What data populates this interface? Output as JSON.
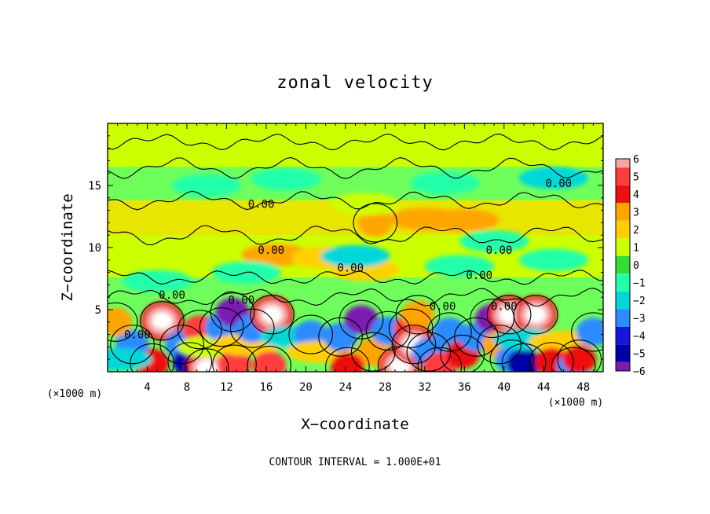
{
  "chart_data": {
    "type": "heatmap",
    "title": "zonal velocity",
    "xlabel": "X−coordinate",
    "ylabel": "Z−coordinate",
    "x_unit_left": "(×1000 m)",
    "x_unit_right": "(×1000 m)",
    "footer": "CONTOUR INTERVAL = 1.000E+01",
    "xlim": [
      0,
      50
    ],
    "ylim": [
      0,
      20
    ],
    "x_ticks": [
      4,
      8,
      12,
      16,
      20,
      24,
      28,
      32,
      36,
      40,
      44,
      48
    ],
    "x_tick_labels": [
      "4",
      "8",
      "12",
      "16",
      "20",
      "24",
      "28",
      "32",
      "36",
      "40",
      "44",
      "48"
    ],
    "y_ticks": [
      5,
      10,
      15
    ],
    "y_tick_labels": [
      "5",
      "10",
      "15"
    ],
    "colorbar": {
      "levels": [
        6,
        5,
        4,
        3,
        2,
        1,
        0,
        -1,
        -2,
        -3,
        -4,
        -5,
        -6
      ],
      "labels": [
        "6",
        "5",
        "4",
        "3",
        "2",
        "1",
        "0",
        "−1",
        "−2",
        "−3",
        "−4",
        "−5",
        "−6"
      ],
      "colors": [
        "#f4a6a6",
        "#ff3c3c",
        "#ee1010",
        "#ffa500",
        "#ffd000",
        "#ccff00",
        "#33dd33",
        "#22ffaa",
        "#00d8d8",
        "#2a8cff",
        "#1515dd",
        "#0000aa",
        "#7a1bb2"
      ]
    },
    "contour_label": "0.00",
    "contour_label_positions": [
      {
        "x": 3.0,
        "z": 3.0
      },
      {
        "x": 6.5,
        "z": 6.2
      },
      {
        "x": 13.5,
        "z": 5.8
      },
      {
        "x": 15.5,
        "z": 13.5
      },
      {
        "x": 16.5,
        "z": 9.8
      },
      {
        "x": 24.5,
        "z": 8.4
      },
      {
        "x": 33.8,
        "z": 5.3
      },
      {
        "x": 37.5,
        "z": 7.8
      },
      {
        "x": 39.5,
        "z": 9.8
      },
      {
        "x": 40.0,
        "z": 5.3
      },
      {
        "x": 45.5,
        "z": 15.2
      }
    ],
    "features": [
      {
        "x": 5.5,
        "z": 4.1,
        "value": 7
      },
      {
        "x": 4.5,
        "z": 0.7,
        "value": 4
      },
      {
        "x": 2.5,
        "z": 2.2,
        "value": -3
      },
      {
        "x": 7.5,
        "z": 2.2,
        "value": -3
      },
      {
        "x": 9.3,
        "z": 3.4,
        "value": 5
      },
      {
        "x": 8.3,
        "z": 0.8,
        "value": -5
      },
      {
        "x": 10.0,
        "z": 0.3,
        "value": 7
      },
      {
        "x": 10.5,
        "z": 2.0,
        "value": 1
      },
      {
        "x": 11.5,
        "z": 3.6,
        "value": -3
      },
      {
        "x": 12.6,
        "z": 4.8,
        "value": -6
      },
      {
        "x": 12.8,
        "z": 0.6,
        "value": 5
      },
      {
        "x": 14.0,
        "z": 2.2,
        "value": 2
      },
      {
        "x": 14.6,
        "z": 3.5,
        "value": -3
      },
      {
        "x": 16.6,
        "z": 4.6,
        "value": 7
      },
      {
        "x": 16.3,
        "z": 0.5,
        "value": 5
      },
      {
        "x": 18.8,
        "z": 2.8,
        "value": -2.5
      },
      {
        "x": 20.5,
        "z": 3.0,
        "value": -3
      },
      {
        "x": 21.5,
        "z": 1.6,
        "value": 2
      },
      {
        "x": 23.5,
        "z": 2.8,
        "value": -3
      },
      {
        "x": 25.6,
        "z": 4.2,
        "value": -6
      },
      {
        "x": 26.8,
        "z": 1.6,
        "value": 3
      },
      {
        "x": 24.2,
        "z": 0.4,
        "value": 4
      },
      {
        "x": 28.3,
        "z": 3.3,
        "value": -3
      },
      {
        "x": 29.5,
        "z": 0.5,
        "value": 7
      },
      {
        "x": 30.6,
        "z": 3.5,
        "value": 5
      },
      {
        "x": 31.3,
        "z": 4.6,
        "value": 3
      },
      {
        "x": 30.9,
        "z": 2.2,
        "value": 7
      },
      {
        "x": 32.4,
        "z": 1.6,
        "value": -3
      },
      {
        "x": 33.5,
        "z": 0.4,
        "value": 5
      },
      {
        "x": 34.5,
        "z": 3.2,
        "value": -3
      },
      {
        "x": 35.8,
        "z": 1.4,
        "value": 4
      },
      {
        "x": 37.2,
        "z": 2.8,
        "value": -3
      },
      {
        "x": 38.8,
        "z": 4.3,
        "value": -6
      },
      {
        "x": 39.5,
        "z": 2.2,
        "value": 3
      },
      {
        "x": 40.5,
        "z": 4.6,
        "value": 7
      },
      {
        "x": 40.8,
        "z": 1.0,
        "value": -3
      },
      {
        "x": 42.0,
        "z": 0.7,
        "value": -5.5
      },
      {
        "x": 43.2,
        "z": 4.6,
        "value": 7
      },
      {
        "x": 42.3,
        "z": 2.6,
        "value": -2
      },
      {
        "x": 46.0,
        "z": 2.4,
        "value": 2
      },
      {
        "x": 44.8,
        "z": 0.8,
        "value": 4
      },
      {
        "x": 47.0,
        "z": 0.4,
        "value": -3.5
      },
      {
        "x": 47.6,
        "z": 1.0,
        "value": 4
      },
      {
        "x": 49.0,
        "z": 3.2,
        "value": -3
      },
      {
        "x": 0.8,
        "z": 4.0,
        "value": 3
      },
      {
        "x": 1.0,
        "z": 1.0,
        "value": -2
      },
      {
        "x": 27.0,
        "z": 12.0,
        "value": 3
      },
      {
        "x": 32.0,
        "z": 12.3,
        "value": 2.5
      },
      {
        "x": 36.0,
        "z": 12.2,
        "value": 2.5
      },
      {
        "x": 17.0,
        "z": 9.4,
        "value": 2.5
      },
      {
        "x": 22.0,
        "z": 9.2,
        "value": 1.5
      },
      {
        "x": 26.0,
        "z": 8.2,
        "value": 1.5
      },
      {
        "x": 25.0,
        "z": 9.3,
        "value": -2
      },
      {
        "x": 35.5,
        "z": 8.5,
        "value": -1.5
      },
      {
        "x": 39.0,
        "z": 10.5,
        "value": -1.5
      },
      {
        "x": 10.0,
        "z": 15.0,
        "value": -1.5
      },
      {
        "x": 18.0,
        "z": 15.5,
        "value": -1.2
      },
      {
        "x": 34.0,
        "z": 15.2,
        "value": -1.5
      },
      {
        "x": 45.0,
        "z": 15.6,
        "value": -2
      },
      {
        "x": 26.0,
        "z": 13.5,
        "value": 1.2
      },
      {
        "x": 14.0,
        "z": 8.0,
        "value": -1.2
      },
      {
        "x": 5.0,
        "z": 7.3,
        "value": -1.5
      },
      {
        "x": 45.0,
        "z": 9.0,
        "value": -1.2
      },
      {
        "x": 22.0,
        "z": 17.5,
        "value": 1
      },
      {
        "x": 40.0,
        "z": 18.5,
        "value": 1
      }
    ]
  }
}
